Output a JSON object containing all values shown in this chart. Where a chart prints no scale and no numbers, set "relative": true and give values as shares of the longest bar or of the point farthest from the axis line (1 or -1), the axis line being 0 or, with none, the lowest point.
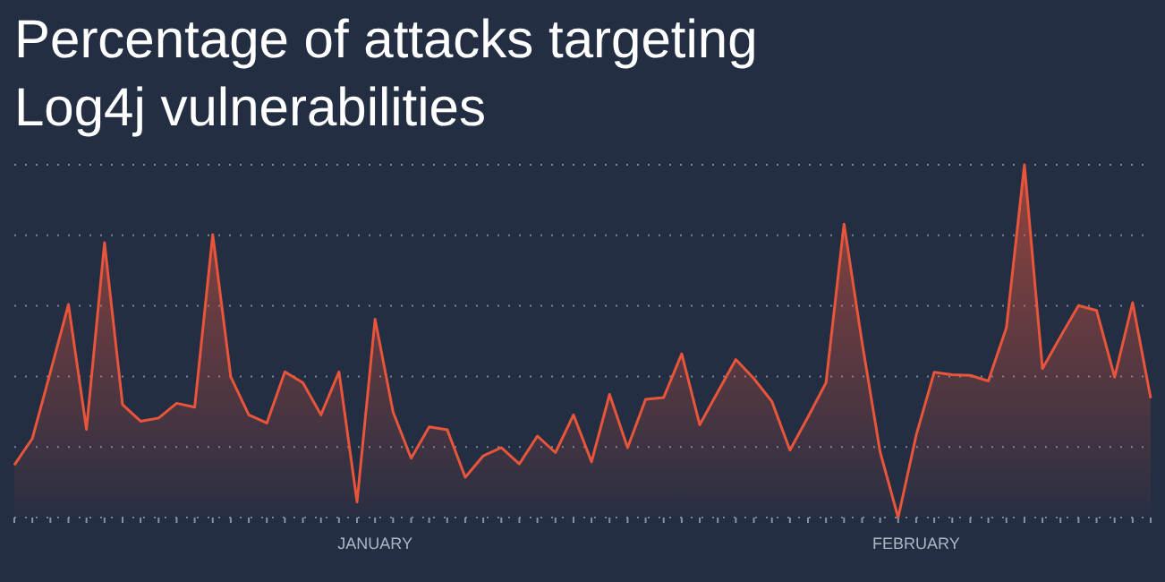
{
  "chart_data": {
    "type": "area",
    "title": "Percentage of attacks targeting Log4j vulnerabilities",
    "relative": true,
    "grid": "y",
    "color": "#e8553a",
    "categories": [
      null,
      null,
      null,
      null,
      null,
      null,
      null,
      null,
      null,
      null,
      null,
      null,
      null,
      null,
      null,
      null,
      null,
      null,
      null,
      null,
      "JANUARY",
      null,
      null,
      null,
      null,
      null,
      null,
      null,
      null,
      null,
      null,
      null,
      null,
      null,
      null,
      null,
      null,
      null,
      null,
      null,
      null,
      null,
      null,
      null,
      null,
      null,
      null,
      null,
      null,
      null,
      "FEBRUARY",
      null,
      null,
      null,
      null,
      null,
      null,
      null,
      null,
      null,
      null,
      null,
      null,
      null
    ],
    "values": [
      0.149,
      0.224,
      0.412,
      0.604,
      0.25,
      0.779,
      0.32,
      0.273,
      0.282,
      0.324,
      0.313,
      0.802,
      0.399,
      0.291,
      0.268,
      0.413,
      0.382,
      0.291,
      0.413,
      0.044,
      0.562,
      0.299,
      0.168,
      0.257,
      0.249,
      0.114,
      0.175,
      0.198,
      0.152,
      0.231,
      0.184,
      0.291,
      0.158,
      0.349,
      0.198,
      0.335,
      0.34,
      0.464,
      0.263,
      0.356,
      0.448,
      0.394,
      0.329,
      0.191,
      0.285,
      0.382,
      0.832,
      0.496,
      0.186,
      0,
      0.233,
      0.412,
      0.405,
      0.403,
      0.387,
      0.538,
      1,
      0.422,
      0.513,
      0.601,
      0.587,
      0.398,
      0.609,
      0.338
    ]
  }
}
